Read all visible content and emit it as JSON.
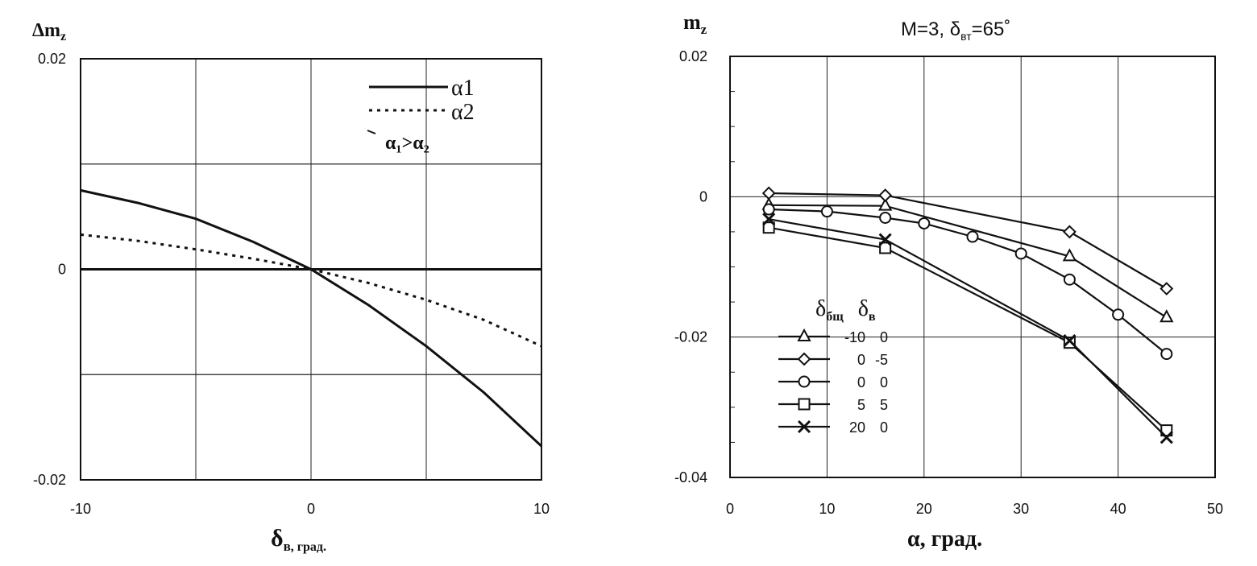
{
  "chart_data": [
    {
      "type": "line",
      "ylabel": "Δm",
      "ylabel_sub": "z",
      "xlabel": "δ",
      "xlabel_sub": "в",
      "xlabel_unit": ", град.",
      "xlim": [
        -10,
        10
      ],
      "ylim": [
        -0.02,
        0.02
      ],
      "x_ticks": [
        "-10",
        "0",
        "10"
      ],
      "y_ticks": [
        "0.02",
        "0",
        "-0.02"
      ],
      "grid": true,
      "legend_position": "top-right",
      "legend_note": "α₁>α₂",
      "series": [
        {
          "name": "α1",
          "style": "solid",
          "x": [
            -10,
            -7.5,
            -5,
            -2.5,
            0,
            2.5,
            5,
            7.5,
            10
          ],
          "y": [
            0.0075,
            0.0063,
            0.0048,
            0.0026,
            0,
            -0.0034,
            -0.0073,
            -0.0117,
            -0.0168
          ]
        },
        {
          "name": "α2",
          "style": "dotted",
          "x": [
            -10,
            -7.5,
            -5,
            -2.5,
            0,
            2.5,
            5,
            7.5,
            10
          ],
          "y": [
            0.0033,
            0.0027,
            0.0019,
            0.001,
            0,
            -0.0013,
            -0.0029,
            -0.0048,
            -0.0073
          ]
        }
      ]
    },
    {
      "type": "line",
      "title": "M=3, δ",
      "title_sub": "вт",
      "title_tail": "=65˚",
      "ylabel": "m",
      "ylabel_sub": "z",
      "xlabel": "α, град.",
      "xlim": [
        0,
        50
      ],
      "ylim": [
        -0.04,
        0.02
      ],
      "x_ticks": [
        "0",
        "10",
        "20",
        "30",
        "40",
        "50"
      ],
      "y_ticks": [
        "0.02",
        "0",
        "-0.02",
        "-0.04"
      ],
      "grid": true,
      "legend_position": "center-left",
      "legend_header": [
        "δ",
        "бщ",
        "δ",
        "в"
      ],
      "series": [
        {
          "name": "-10  0",
          "marker": "triangle",
          "x": [
            4,
            16,
            35,
            45
          ],
          "y": [
            -0.0012,
            -0.0013,
            -0.0085,
            -0.0172
          ]
        },
        {
          "name": "0  -5",
          "marker": "diamond",
          "x": [
            4,
            16,
            35,
            45
          ],
          "y": [
            0.0005,
            0.0002,
            -0.005,
            -0.0131
          ]
        },
        {
          "name": "0  0",
          "marker": "circle",
          "x": [
            4,
            10,
            16,
            20,
            25,
            30,
            35,
            40,
            45
          ],
          "y": [
            -0.0018,
            -0.0021,
            -0.003,
            -0.0038,
            -0.0057,
            -0.0081,
            -0.0118,
            -0.0168,
            -0.0224
          ]
        },
        {
          "name": "5  5",
          "marker": "square",
          "x": [
            4,
            16,
            35,
            45
          ],
          "y": [
            -0.0044,
            -0.0073,
            -0.0208,
            -0.0333
          ]
        },
        {
          "name": "20  0",
          "marker": "cross",
          "x": [
            4,
            16,
            35,
            45
          ],
          "y": [
            -0.0032,
            -0.0061,
            -0.0205,
            -0.0343
          ]
        }
      ]
    }
  ]
}
